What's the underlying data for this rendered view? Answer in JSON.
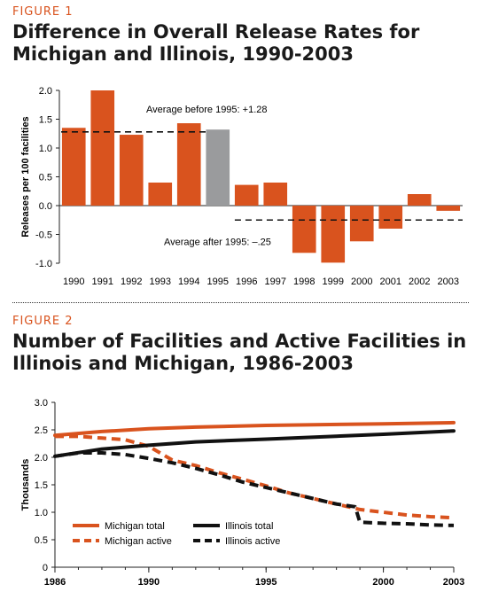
{
  "figure1": {
    "label": "FIGURE 1",
    "title_line1": "Difference in Overall Release Rates for",
    "title_line2": "Michigan and Illinois, 1990-2003"
  },
  "figure2": {
    "label": "FIGURE 2",
    "title_line1": "Number of Facilities and Active Facilities in",
    "title_line2": "Illinois and Michigan, 1986-2003"
  },
  "colors": {
    "accent": "#d9531e",
    "highlight_bar": "#9a9b9d",
    "dark": "#111111"
  },
  "chart_data": [
    {
      "type": "bar",
      "ylabel": "Releases per 100 facilities",
      "ylim": [
        -1.0,
        2.0
      ],
      "yticks": [
        2.0,
        1.5,
        1.0,
        0.5,
        0.0,
        -0.5,
        -1.0
      ],
      "ytick_labels": [
        "2.0",
        "1.5",
        "1.0",
        "0.5",
        "0.0",
        "-0.5",
        "-1.0"
      ],
      "categories": [
        "1990",
        "1991",
        "1992",
        "1993",
        "1994",
        "1995",
        "1996",
        "1997",
        "1998",
        "1999",
        "2000",
        "2001",
        "2002",
        "2003"
      ],
      "values": [
        1.35,
        2.0,
        1.23,
        0.4,
        1.43,
        1.32,
        0.36,
        0.4,
        -0.82,
        -0.99,
        -0.62,
        -0.4,
        0.2,
        -0.09
      ],
      "highlight_category": "1995",
      "reference_lines": [
        {
          "label": "Average before 1995: +1.28",
          "value": 1.28,
          "from": "1990",
          "to": "1995"
        },
        {
          "label": "Average after 1995: –.25",
          "value": -0.25,
          "from": "1996",
          "to": "2003"
        }
      ]
    },
    {
      "type": "line",
      "ylabel": "Thousands",
      "ylim": [
        0,
        3.0
      ],
      "xlim": [
        1986,
        2003
      ],
      "yticks": [
        3.0,
        2.5,
        2.0,
        1.5,
        1.0,
        0.5,
        0
      ],
      "ytick_labels": [
        "3.0",
        "2.5",
        "2.0",
        "1.5",
        "1.0",
        "0.5",
        "0"
      ],
      "xticks": [
        1986,
        1990,
        1995,
        2000,
        2003
      ],
      "xtick_labels": [
        "1986",
        "1990",
        "1995",
        "2000",
        "2003"
      ],
      "series": [
        {
          "name": "Michigan total",
          "style": "solid",
          "color": "#d9531e",
          "x": [
            1986,
            1988,
            1990,
            1992,
            1995,
            2000,
            2003
          ],
          "y": [
            2.4,
            2.47,
            2.52,
            2.55,
            2.58,
            2.61,
            2.63
          ]
        },
        {
          "name": "Michigan active",
          "style": "dashed",
          "color": "#d9531e",
          "x": [
            1986,
            1987,
            1988,
            1989,
            1990,
            1991,
            1992,
            1993,
            1994,
            1995,
            1996,
            1997,
            1998,
            1999,
            2000,
            2001,
            2002,
            2003
          ],
          "y": [
            2.38,
            2.38,
            2.35,
            2.32,
            2.2,
            1.95,
            1.85,
            1.72,
            1.6,
            1.48,
            1.35,
            1.25,
            1.15,
            1.05,
            1.0,
            0.95,
            0.92,
            0.9
          ]
        },
        {
          "name": "Illinois total",
          "style": "solid",
          "color": "#111111",
          "x": [
            1986,
            1988,
            1990,
            1992,
            1995,
            2000,
            2003
          ],
          "y": [
            2.02,
            2.15,
            2.22,
            2.28,
            2.33,
            2.42,
            2.48
          ]
        },
        {
          "name": "Illinois active",
          "style": "dashed",
          "color": "#111111",
          "x": [
            1986,
            1987,
            1988,
            1989,
            1990,
            1991,
            1992,
            1993,
            1994,
            1995,
            1996,
            1997,
            1998,
            1998.8,
            1999,
            2000,
            2001,
            2002,
            2003
          ],
          "y": [
            2.02,
            2.08,
            2.08,
            2.05,
            1.98,
            1.9,
            1.8,
            1.68,
            1.55,
            1.45,
            1.35,
            1.25,
            1.15,
            1.1,
            0.82,
            0.8,
            0.79,
            0.77,
            0.76
          ]
        }
      ],
      "legend_position": "bottom-left"
    }
  ]
}
